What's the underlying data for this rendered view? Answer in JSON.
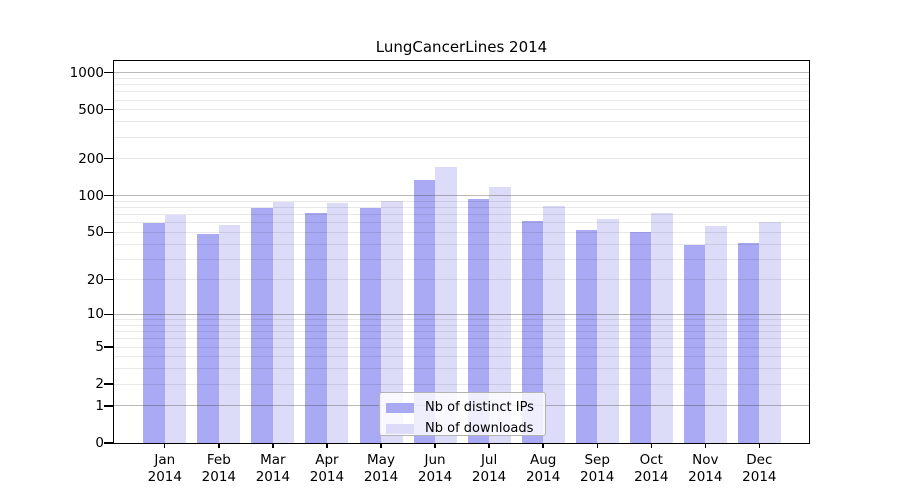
{
  "chart_data": {
    "type": "bar",
    "title": "LungCancerLines 2014",
    "xlabel": "",
    "ylabel": "",
    "year": "2014",
    "categories": [
      "Jan",
      "Feb",
      "Mar",
      "Apr",
      "May",
      "Jun",
      "Jul",
      "Aug",
      "Sep",
      "Oct",
      "Nov",
      "Dec"
    ],
    "series": [
      {
        "name": "Nb of distinct IPs",
        "color": "#a9a9f4",
        "values": [
          60,
          48,
          79,
          72,
          79,
          134,
          94,
          62,
          52,
          50,
          39,
          41
        ]
      },
      {
        "name": "Nb of downloads",
        "color": "#dcdcf9",
        "values": [
          70,
          57,
          89,
          87,
          91,
          173,
          117,
          82,
          64,
          72,
          56,
          61
        ]
      }
    ],
    "y_scale": "log10(1+y)",
    "y_ticks": [
      0,
      1,
      2,
      5,
      10,
      20,
      50,
      100,
      200,
      500,
      1000
    ],
    "ylim": [
      0,
      1000
    ],
    "grid": {
      "horizontal": true,
      "major_at": [
        1,
        10,
        100,
        1000
      ],
      "minor_mantissas": [
        2,
        3,
        4,
        5,
        6,
        7,
        8,
        9
      ]
    },
    "legend_position": "lower center"
  },
  "colors": {
    "series_dark": "#a9a9f4",
    "series_light": "#dcdcf9",
    "spine": "#000000",
    "background": "#ffffff",
    "legend_border": "#b3b3b3"
  }
}
